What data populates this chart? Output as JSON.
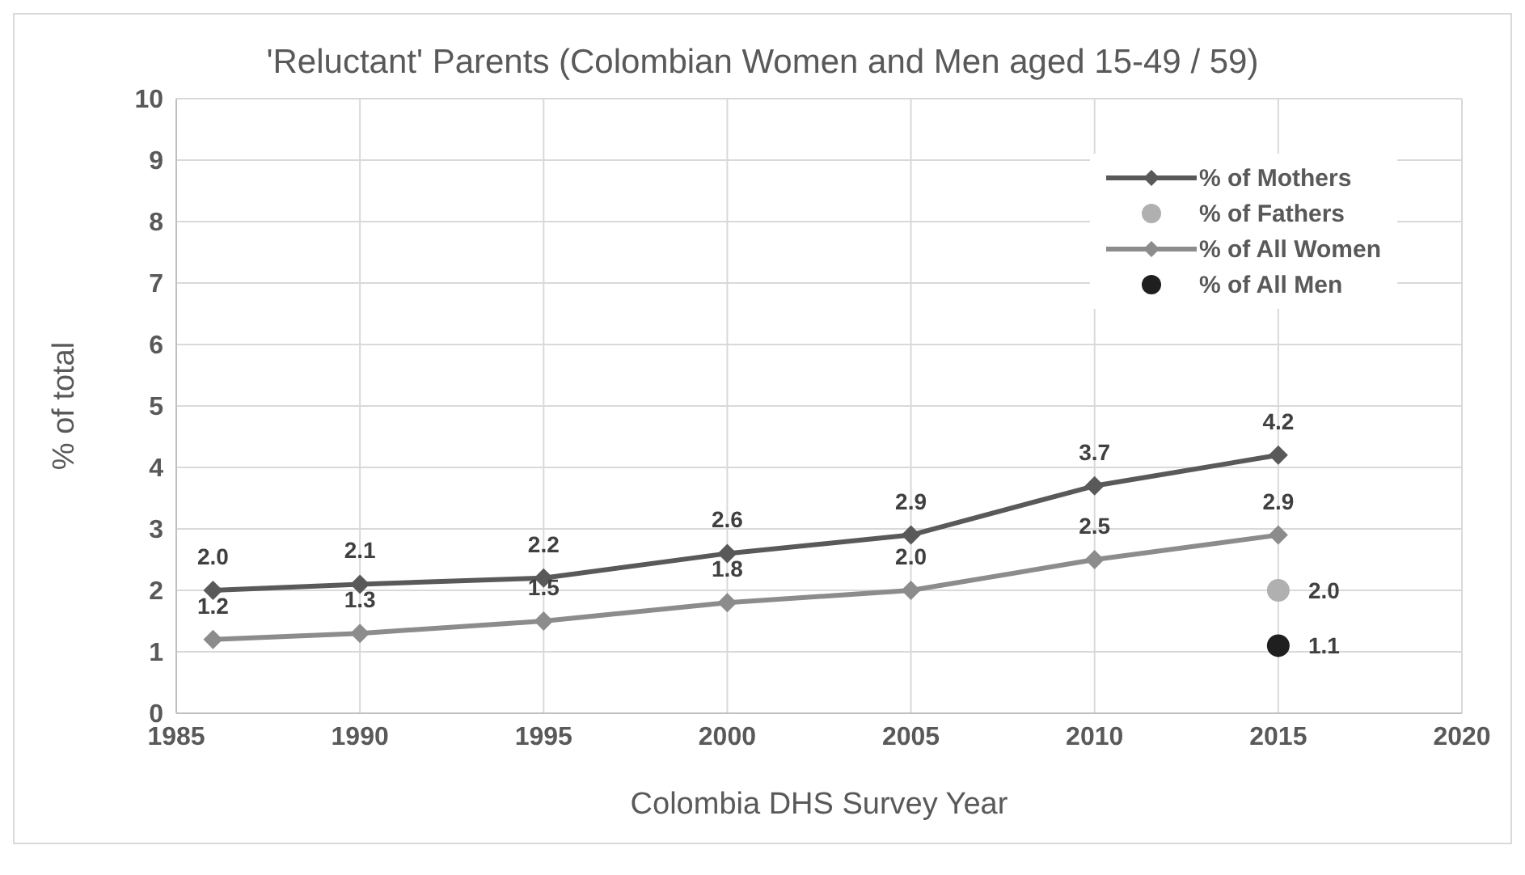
{
  "chart_data": {
    "type": "line",
    "title": "'Reluctant' Parents (Colombian Women and Men aged 15-49 / 59)",
    "xlabel": "Colombia DHS Survey Year",
    "ylabel": "% of total",
    "x": [
      1986,
      1990,
      1995,
      2000,
      2005,
      2010,
      2015
    ],
    "series": [
      {
        "name": "% of Mothers",
        "color": "#595959",
        "marker": "diamond",
        "values": [
          2.0,
          2.1,
          2.2,
          2.6,
          2.9,
          3.7,
          4.2
        ],
        "value_labels": [
          "2.0",
          "2.1",
          "2.2",
          "2.6",
          "2.9",
          "3.7",
          "4.2"
        ]
      },
      {
        "name": "% of Fathers",
        "type": "scatter",
        "color": "#b0b0b0",
        "marker": "circle",
        "x": [
          2015
        ],
        "values": [
          2.0
        ],
        "value_labels": [
          "2.0"
        ]
      },
      {
        "name": "% of All Women",
        "color": "#8c8c8c",
        "marker": "diamond",
        "values": [
          1.2,
          1.3,
          1.5,
          1.8,
          2.0,
          2.5,
          2.9
        ],
        "value_labels": [
          "1.2",
          "1.3",
          "1.5",
          "1.8",
          "2.0",
          "2.5",
          "2.9"
        ]
      },
      {
        "name": "% of All Men",
        "type": "scatter",
        "color": "#1f1f1f",
        "marker": "circle",
        "x": [
          2015
        ],
        "values": [
          1.1
        ],
        "value_labels": [
          "1.1"
        ]
      }
    ],
    "xlim": [
      1985,
      2020
    ],
    "xticks": [
      1985,
      1990,
      1995,
      2000,
      2005,
      2010,
      2015,
      2020
    ],
    "ylim": [
      0,
      10
    ],
    "yticks": [
      0,
      1,
      2,
      3,
      4,
      5,
      6,
      7,
      8,
      9,
      10
    ],
    "grid": true,
    "legend": "top right"
  }
}
